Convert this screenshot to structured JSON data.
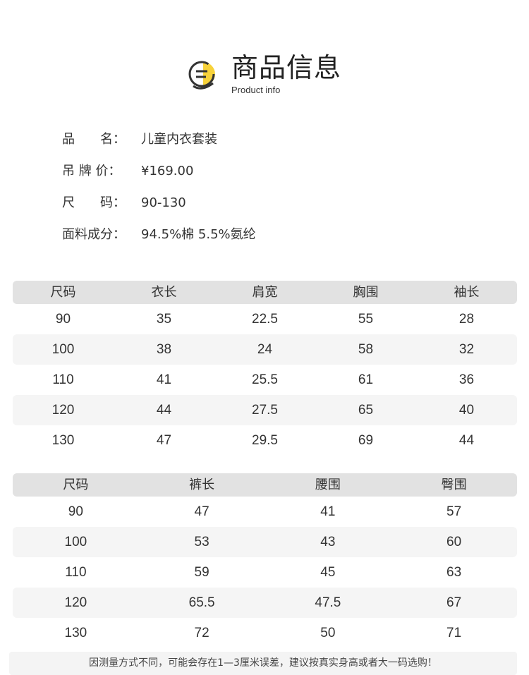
{
  "header": {
    "title": "商品信息",
    "subtitle": "Product info",
    "accent": "#f7d23a"
  },
  "info": [
    {
      "label": "品　　名：",
      "value": "儿童内衣套装"
    },
    {
      "label": "吊 牌 价：",
      "value": "¥169.00"
    },
    {
      "label": "尺　　码：",
      "value": "90-130"
    },
    {
      "label": "面料成分：",
      "value": "94.5%棉 5.5%氨纶"
    }
  ],
  "table1": {
    "headers": [
      "尺码",
      "衣长",
      "肩宽",
      "胸围",
      "袖长"
    ],
    "rows": [
      [
        "90",
        "35",
        "22.5",
        "55",
        "28"
      ],
      [
        "100",
        "38",
        "24",
        "58",
        "32"
      ],
      [
        "110",
        "41",
        "25.5",
        "61",
        "36"
      ],
      [
        "120",
        "44",
        "27.5",
        "65",
        "40"
      ],
      [
        "130",
        "47",
        "29.5",
        "69",
        "44"
      ]
    ]
  },
  "table2": {
    "headers": [
      "尺码",
      "裤长",
      "腰围",
      "臀围"
    ],
    "rows": [
      [
        "90",
        "47",
        "41",
        "57"
      ],
      [
        "100",
        "53",
        "43",
        "60"
      ],
      [
        "110",
        "59",
        "45",
        "63"
      ],
      [
        "120",
        "65.5",
        "47.5",
        "67"
      ],
      [
        "130",
        "72",
        "50",
        "71"
      ]
    ]
  },
  "note": "因测量方式不同，可能会存在1—3厘米误差，建议按真实身高或者大一码选购！"
}
